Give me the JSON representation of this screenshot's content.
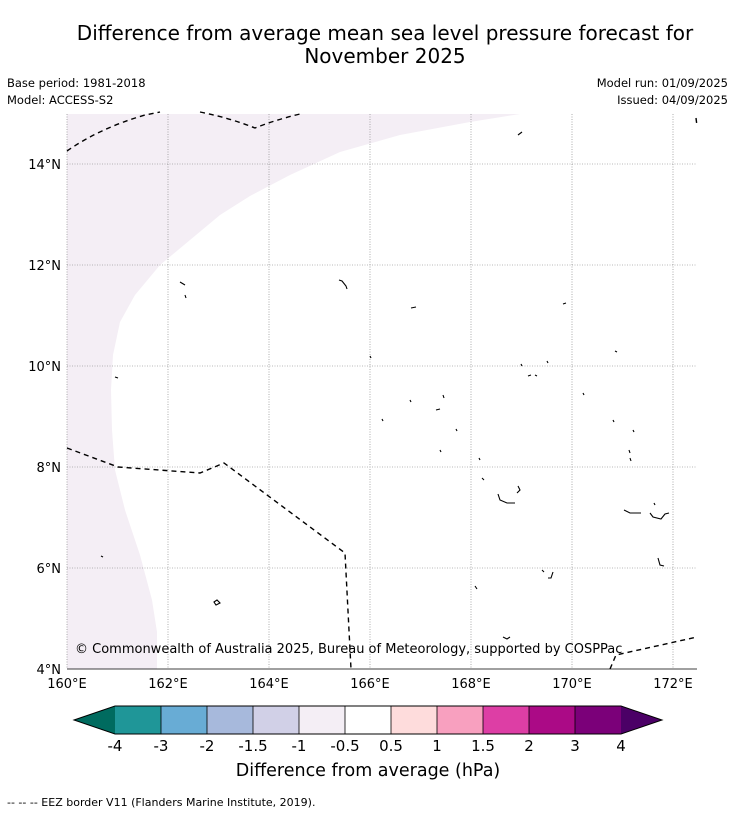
{
  "title_line1": "Difference from average mean sea level pressure forecast for",
  "title_line2": "November 2025",
  "base_period": "Base period: 1981-2018",
  "model": "Model: ACCESS-S2",
  "model_run": "Model run: 01/09/2025",
  "issued": "Issued: 04/09/2025",
  "copyright": "© Commonwealth of Australia 2025, Bureau of Meteorology, supported by COSPPac",
  "map": {
    "lat_labels": [
      "14°N",
      "12°N",
      "10°N",
      "8°N",
      "6°N",
      "4°N"
    ],
    "lon_labels": [
      "160°E",
      "162°E",
      "164°E",
      "166°E",
      "168°E",
      "170°E",
      "172°E"
    ],
    "shaded_region_category": "-1 to -0.5",
    "shaded_color": "#f4eef5",
    "border_line_style": "dashed"
  },
  "colorbar": {
    "labels": [
      "-4",
      "-3",
      "-2",
      "-1.5",
      "-1",
      "-0.5",
      "0.5",
      "1",
      "1.5",
      "2",
      "3",
      "4"
    ],
    "colors": [
      "#1f9698",
      "#68acd5",
      "#a7b9dc",
      "#d1d0e7",
      "#f4eef5",
      "#ffffff",
      "#fedcdc",
      "#f8a0bf",
      "#dd3ea5",
      "#ab0a86",
      "#7b0079"
    ],
    "low_color": "#006b5f",
    "high_color": "#4b0066",
    "title": "Difference from average (hPa)"
  },
  "footer": "--  --  -- EEZ border V11 (Flanders Marine Institute, 2019)."
}
